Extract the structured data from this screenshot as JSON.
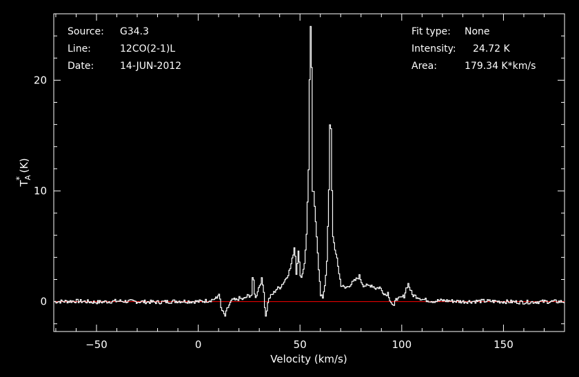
{
  "info": {
    "source_label": "Source:",
    "source_value": "G34.3",
    "line_label": "Line:",
    "line_value": "12CO(2-1)L",
    "date_label": "Date:",
    "date_value": "14-JUN-2012",
    "fit_label": "Fit type:",
    "fit_value": "None",
    "intensity_label": "Intensity:",
    "intensity_value": "24.72 K",
    "area_label": "Area:",
    "area_value": "179.34 K*km/s"
  },
  "colors": {
    "background": "#000000",
    "axes": "#ffffff",
    "spectrum": "#ffffff",
    "baseline": "#ff0000"
  },
  "chart_data": {
    "type": "line",
    "title": "",
    "xlabel": "Velocity (km/s)",
    "ylabel_main": "T",
    "ylabel_sup": "*",
    "ylabel_sub": "A",
    "ylabel_unit": "(K)",
    "xlim": [
      -71,
      180
    ],
    "ylim": [
      -2.7,
      26
    ],
    "x_ticks": [
      -50,
      0,
      50,
      100,
      150
    ],
    "x_tick_labels": [
      "−50",
      "0",
      "50",
      "100",
      "150"
    ],
    "y_ticks": [
      0,
      10,
      20
    ],
    "y_tick_labels": [
      "0",
      "10",
      "20"
    ],
    "grid": false,
    "series": [
      {
        "values_x": [
          -71,
          -60,
          -50,
          -40,
          -30,
          -20,
          -10,
          0,
          5,
          9,
          10,
          11,
          12,
          13,
          14,
          15,
          16,
          17,
          18,
          20,
          22,
          24,
          26,
          26.5,
          27,
          27.5,
          28,
          29,
          30,
          31,
          32,
          32.5,
          33,
          33.5,
          34,
          35,
          36,
          37,
          38,
          40,
          42,
          44,
          45,
          46,
          47,
          47.5,
          48,
          49,
          49.5,
          50,
          51,
          52,
          53,
          54,
          54.5,
          55,
          55.5,
          56,
          56.5,
          57,
          58,
          59,
          60,
          61,
          62,
          63,
          64,
          64.5,
          65,
          65.5,
          66,
          67,
          68,
          69,
          70,
          72,
          75,
          78,
          79,
          80,
          81,
          83,
          85,
          87,
          89,
          90,
          92,
          93,
          94,
          95,
          96,
          97,
          98,
          100,
          101,
          102,
          103,
          105,
          108,
          110,
          115,
          120,
          130,
          140,
          150,
          160,
          170,
          180
        ],
        "values_y": [
          0,
          0.05,
          -0.05,
          0.05,
          0,
          -0.05,
          0.05,
          0,
          0.1,
          0.3,
          0.8,
          -0.6,
          -1.0,
          -1.3,
          -0.7,
          -0.3,
          0,
          0.2,
          0.1,
          0.3,
          0.2,
          0.5,
          0.6,
          2.0,
          1.9,
          0.8,
          0.3,
          1.0,
          1.5,
          2.0,
          1.0,
          -0.5,
          -1.2,
          -0.9,
          0,
          0.4,
          0.6,
          0.8,
          1.1,
          1.3,
          1.8,
          2.5,
          3.0,
          3.8,
          4.9,
          4.2,
          2.5,
          4.7,
          3.5,
          2.2,
          2.5,
          3.5,
          6.0,
          12.0,
          20.0,
          24.72,
          21.0,
          10.0,
          9.8,
          8.5,
          6.0,
          3.0,
          0.5,
          0.4,
          1.5,
          3.5,
          10.0,
          15.9,
          15.7,
          10.0,
          6.0,
          4.5,
          4.0,
          2.5,
          1.5,
          1.2,
          1.6,
          2.1,
          2.3,
          1.8,
          1.5,
          1.4,
          1.5,
          1.2,
          1.3,
          1.0,
          0.6,
          0.8,
          0.2,
          -0.2,
          -0.5,
          0.4,
          0.2,
          0.4,
          0.5,
          1.2,
          1.6,
          0.6,
          0.4,
          0.2,
          0.05,
          0.1,
          0,
          0.05,
          0,
          -0.05,
          0,
          0
        ]
      },
      {
        "values_x": [
          -71,
          180
        ],
        "values_y": [
          0,
          0
        ]
      }
    ]
  }
}
